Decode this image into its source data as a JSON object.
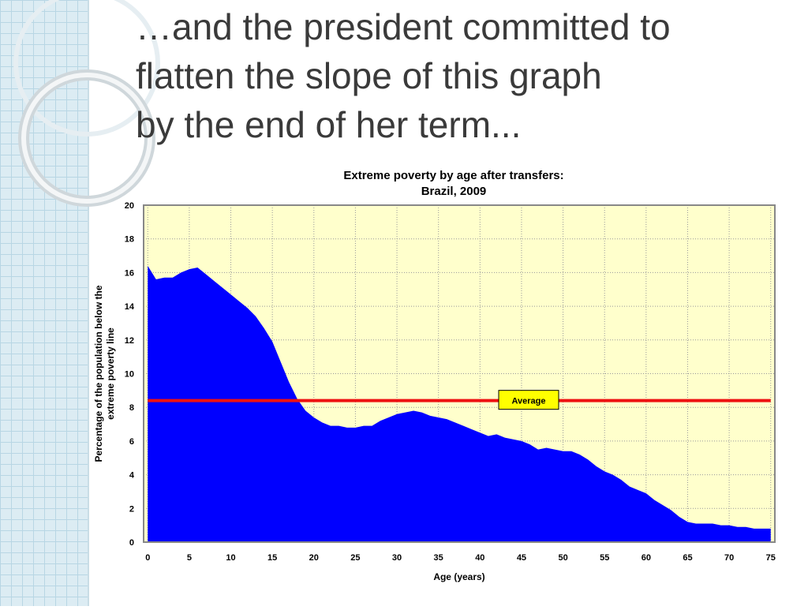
{
  "slide_title": "…and the president committed to flatten the slope of this graph by the end of her term...",
  "chart_data": {
    "type": "area",
    "title": [
      "Extreme poverty by age after transfers:",
      "Brazil, 2009"
    ],
    "x_label": "Age (years)",
    "y_label": [
      "Percentage of the population below the",
      "extreme poverty line"
    ],
    "x": [
      0,
      1,
      2,
      3,
      4,
      5,
      6,
      7,
      8,
      9,
      10,
      11,
      12,
      13,
      14,
      15,
      16,
      17,
      18,
      19,
      20,
      21,
      22,
      23,
      24,
      25,
      26,
      27,
      28,
      29,
      30,
      31,
      32,
      33,
      34,
      35,
      36,
      37,
      38,
      39,
      40,
      41,
      42,
      43,
      44,
      45,
      46,
      47,
      48,
      49,
      50,
      51,
      52,
      53,
      54,
      55,
      56,
      57,
      58,
      59,
      60,
      61,
      62,
      63,
      64,
      65,
      66,
      67,
      68,
      69,
      70,
      71,
      72,
      73,
      74,
      75
    ],
    "values": [
      16.4,
      15.6,
      15.7,
      15.7,
      16.0,
      16.2,
      16.3,
      15.9,
      15.5,
      15.1,
      14.7,
      14.3,
      13.9,
      13.4,
      12.7,
      11.9,
      10.7,
      9.5,
      8.5,
      7.8,
      7.4,
      7.1,
      6.9,
      6.9,
      6.8,
      6.8,
      6.9,
      6.9,
      7.2,
      7.4,
      7.6,
      7.7,
      7.8,
      7.7,
      7.5,
      7.4,
      7.3,
      7.1,
      6.9,
      6.7,
      6.5,
      6.3,
      6.4,
      6.2,
      6.1,
      6.0,
      5.8,
      5.5,
      5.6,
      5.5,
      5.4,
      5.4,
      5.2,
      4.9,
      4.5,
      4.2,
      4.0,
      3.7,
      3.3,
      3.1,
      2.9,
      2.5,
      2.2,
      1.9,
      1.5,
      1.2,
      1.1,
      1.1,
      1.1,
      1.0,
      1.0,
      0.9,
      0.9,
      0.8,
      0.8,
      0.8
    ],
    "color": "#0000ff",
    "xlim": [
      -0.5,
      75.5
    ],
    "ylim": [
      0,
      20
    ],
    "xticks": [
      0,
      5,
      10,
      15,
      20,
      25,
      30,
      35,
      40,
      45,
      50,
      55,
      60,
      65,
      70,
      75
    ],
    "yticks": [
      0,
      2,
      4,
      6,
      8,
      10,
      12,
      14,
      16,
      18,
      20
    ],
    "grid": true,
    "reference_line": {
      "value": 8.4,
      "label": "Average",
      "color": "#ee1111"
    }
  }
}
